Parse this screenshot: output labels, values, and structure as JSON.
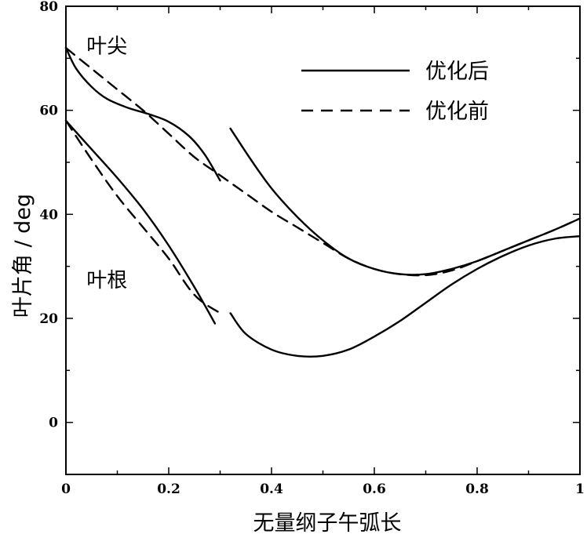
{
  "chart_data": {
    "type": "line",
    "xlabel": "无量纲子午弧长",
    "ylabel": "叶片角 / deg",
    "xlim": [
      0,
      1
    ],
    "ylim": [
      -10,
      80
    ],
    "x_ticks": [
      "0",
      "0.2",
      "0.4",
      "0.6",
      "0.8",
      "1"
    ],
    "y_ticks": [
      "0",
      "20",
      "40",
      "60",
      "80"
    ],
    "grid": false,
    "legend_position": "top-right",
    "legend": [
      {
        "label": "优化后",
        "style": "solid"
      },
      {
        "label": "优化前",
        "style": "dashed"
      }
    ],
    "annotations": [
      {
        "text": "叶尖",
        "x": 0.04,
        "y": 71
      },
      {
        "text": "叶根",
        "x": 0.04,
        "y": 26
      }
    ],
    "series": [
      {
        "group": "叶尖",
        "style": "solid",
        "x": [
          0,
          0.02,
          0.05,
          0.08,
          0.12,
          0.16,
          0.2,
          0.24,
          0.27,
          0.3
        ],
        "y": [
          72,
          68,
          64.5,
          62.2,
          60.5,
          59.3,
          57.8,
          55,
          51.5,
          46.5
        ]
      },
      {
        "group": "叶尖",
        "style": "solid",
        "x": [
          0.32,
          0.36,
          0.4,
          0.45,
          0.5,
          0.55,
          0.6,
          0.65,
          0.7,
          0.75,
          0.8,
          0.85,
          0.9,
          0.95,
          1.0
        ],
        "y": [
          56.5,
          50.5,
          45,
          39.5,
          35,
          31.5,
          29.5,
          28.5,
          28.5,
          29.5,
          31,
          33,
          35,
          37,
          39.2
        ]
      },
      {
        "group": "叶尖",
        "style": "dashed",
        "x": [
          0,
          0.05,
          0.1,
          0.15,
          0.2,
          0.25,
          0.3,
          0.35,
          0.4,
          0.45,
          0.5,
          0.55,
          0.6,
          0.65,
          0.7,
          0.75,
          0.8,
          0.85,
          0.9,
          0.95,
          1.0
        ],
        "y": [
          72,
          68,
          64,
          60,
          55.5,
          51,
          47.5,
          44,
          40.5,
          37.5,
          34.5,
          31.5,
          29.5,
          28.5,
          28.3,
          29.2,
          31,
          33,
          35,
          37,
          39.2
        ]
      },
      {
        "group": "叶根",
        "style": "solid",
        "x": [
          0,
          0.05,
          0.1,
          0.15,
          0.2,
          0.25,
          0.29
        ],
        "y": [
          58,
          52.5,
          47,
          41,
          34,
          26,
          19
        ]
      },
      {
        "group": "叶根",
        "style": "solid",
        "x": [
          0.32,
          0.35,
          0.4,
          0.45,
          0.5,
          0.55,
          0.6,
          0.65,
          0.7,
          0.75,
          0.8,
          0.85,
          0.9,
          0.95,
          1.0
        ],
        "y": [
          21,
          17,
          14,
          12.8,
          12.8,
          14,
          16.5,
          19.5,
          23,
          26.5,
          29.5,
          32,
          34,
          35.3,
          35.8
        ]
      },
      {
        "group": "叶根",
        "style": "dashed",
        "x": [
          0,
          0.05,
          0.1,
          0.15,
          0.2,
          0.25,
          0.3
        ],
        "y": [
          58,
          50.5,
          43.5,
          37.5,
          31.5,
          24.5,
          21
        ]
      }
    ]
  }
}
